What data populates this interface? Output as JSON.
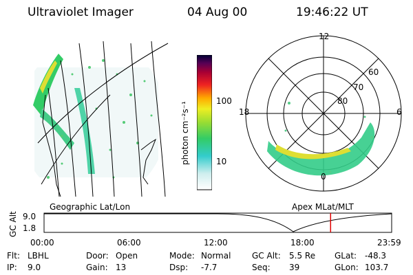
{
  "header": {
    "instrument": "Ultraviolet Imager",
    "date": "04 Aug 00",
    "time": "19:46:22 UT"
  },
  "colorbar": {
    "label": "photon cm⁻²s⁻¹",
    "ticks": [
      "100",
      "10"
    ]
  },
  "polar_plot": {
    "mlt_labels": {
      "top": "12",
      "left": "18",
      "right": "6",
      "bottom": "0"
    },
    "lat_labels": [
      "60",
      "70",
      "80"
    ]
  },
  "map_labels": {
    "left": "Geographic Lat/Lon",
    "right": "Apex MLat/MLT"
  },
  "timeline": {
    "ylabel": "GC Alt",
    "yticks": [
      "9.0",
      "1.8"
    ],
    "xticks": [
      "00:00",
      "06:00",
      "12:00",
      "18:00",
      "23:59"
    ],
    "marker_hour": 19.77,
    "accent": "#e00000"
  },
  "info": {
    "flt_label": "Flt:",
    "flt_value": "LBHL",
    "ip_label": "IP:",
    "ip_value": "9.0",
    "door_label": "Door:",
    "door_value": "Open",
    "gain_label": "Gain:",
    "gain_value": "13",
    "mode_label": "Mode:",
    "mode_value": "Normal",
    "dsp_label": "Dsp:",
    "dsp_value": "-7.7",
    "gcalt_label": "GC Alt:",
    "gcalt_value": "5.5 Re",
    "seq_label": "Seq:",
    "seq_value": "39",
    "glat_label": "GLat:",
    "glat_value": "-48.3",
    "glon_label": "GLon:",
    "glon_value": "103.7"
  }
}
